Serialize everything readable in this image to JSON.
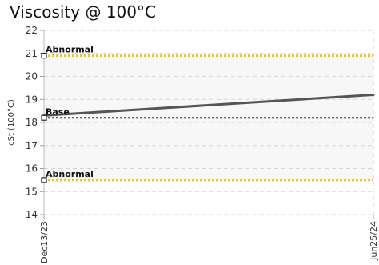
{
  "chart_data": {
    "type": "line",
    "title": "Viscosity @ 100°C",
    "ylabel": "cSt (100°C)",
    "xlabel": "",
    "ylim": [
      14,
      22
    ],
    "y_ticks": [
      14,
      15,
      16,
      17,
      18,
      19,
      20,
      21,
      22
    ],
    "x_ticks": [
      "Dec13/23",
      "Jun25/24"
    ],
    "grid": true,
    "series": [
      {
        "values": [
          18.3,
          19.2
        ],
        "color": "#555555"
      }
    ],
    "reference_lines": [
      {
        "label": "Abnormal",
        "value": 20.9,
        "color": "#f0c419"
      },
      {
        "label": "Base",
        "value": 18.2,
        "color": "#333333"
      },
      {
        "label": "Abnormal",
        "value": 15.5,
        "color": "#f0c419"
      }
    ],
    "band": {
      "from": 15.5,
      "to": 20.9,
      "color": "#f7f7f7"
    }
  }
}
